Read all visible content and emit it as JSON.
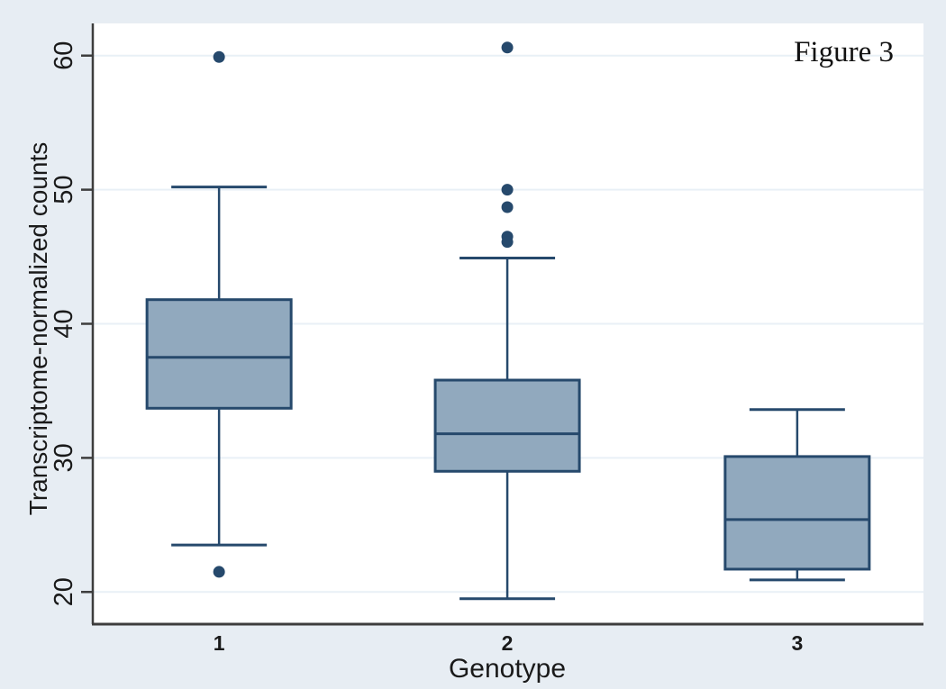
{
  "figure_label": "Figure 3",
  "colors": {
    "background": "#e7edf3",
    "plot_background": "#ffffff",
    "gridline": "#e9f0f6",
    "axis_line": "#3d3d3d",
    "box_fill": "#91a9be",
    "box_stroke": "#26496c",
    "outlier_fill": "#26496c",
    "text": "#1a1a1a"
  },
  "chart_data": {
    "type": "box",
    "title": "Figure 3",
    "xlabel": "Genotype",
    "ylabel": "Transcriptome-normalized counts",
    "categories": [
      "1",
      "2",
      "3"
    ],
    "y_ticks": [
      20,
      30,
      40,
      50,
      60
    ],
    "ylim": [
      17.6,
      62.4
    ],
    "grid": true,
    "legend": "none",
    "series": [
      {
        "category": "1",
        "whisker_low": 23.5,
        "q1": 33.7,
        "median": 37.5,
        "q3": 41.8,
        "whisker_high": 50.2,
        "outliers": [
          59.9,
          21.5
        ]
      },
      {
        "category": "2",
        "whisker_low": 19.5,
        "q1": 29.0,
        "median": 31.8,
        "q3": 35.8,
        "whisker_high": 44.9,
        "outliers": [
          60.6,
          50.0,
          48.7,
          46.5,
          46.1
        ]
      },
      {
        "category": "3",
        "whisker_low": 20.9,
        "q1": 21.7,
        "median": 25.4,
        "q3": 30.1,
        "whisker_high": 33.6,
        "outliers": []
      }
    ]
  }
}
